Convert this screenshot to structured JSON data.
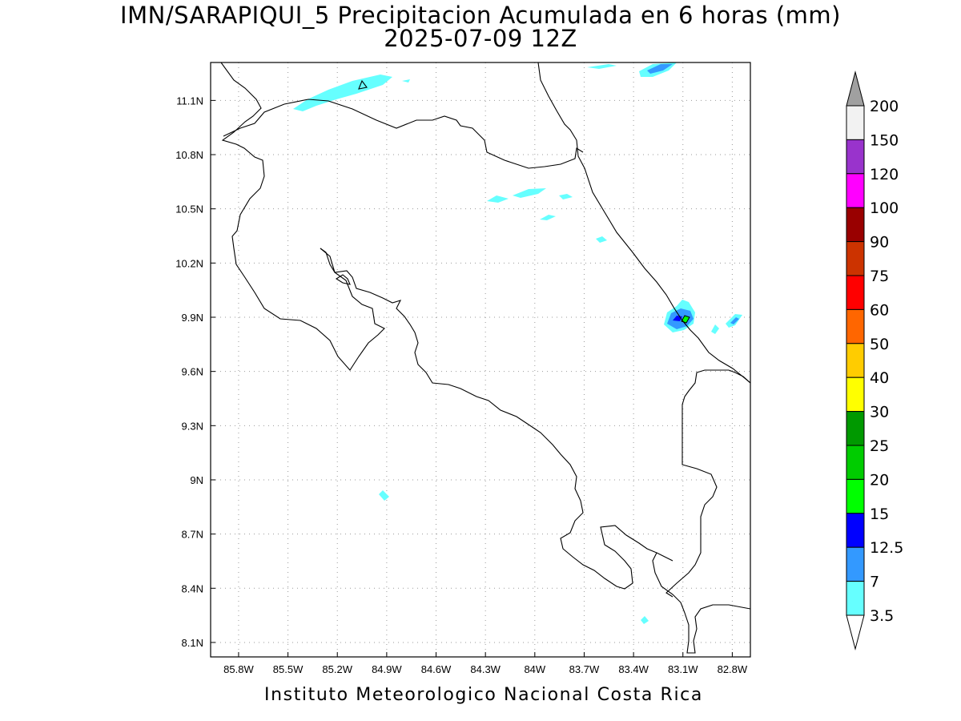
{
  "title": {
    "line1": "IMN/SARAPIQUI_5 Precipitacion Acumulada en 6 horas (mm)",
    "line2": "2025-07-09 12Z"
  },
  "footer": "Instituto Meteorologico Nacional Costa Rica",
  "map": {
    "lon_range": [
      -85.97,
      -82.69
    ],
    "lat_range": [
      8.02,
      11.31
    ],
    "lon_ticks": [
      {
        "v": -85.8,
        "label": "85.8W"
      },
      {
        "v": -85.5,
        "label": "85.5W"
      },
      {
        "v": -85.2,
        "label": "85.2W"
      },
      {
        "v": -84.9,
        "label": "84.9W"
      },
      {
        "v": -84.6,
        "label": "84.6W"
      },
      {
        "v": -84.3,
        "label": "84.3W"
      },
      {
        "v": -84.0,
        "label": "84W"
      },
      {
        "v": -83.7,
        "label": "83.7W"
      },
      {
        "v": -83.4,
        "label": "83.4W"
      },
      {
        "v": -83.1,
        "label": "83.1W"
      },
      {
        "v": -82.8,
        "label": "82.8W"
      }
    ],
    "lat_ticks": [
      {
        "v": 11.1,
        "label": "11.1N"
      },
      {
        "v": 10.8,
        "label": "10.8N"
      },
      {
        "v": 10.5,
        "label": "10.5N"
      },
      {
        "v": 10.2,
        "label": "10.2N"
      },
      {
        "v": 9.9,
        "label": "9.9N"
      },
      {
        "v": 9.6,
        "label": "9.6N"
      },
      {
        "v": 9.3,
        "label": "9.3N"
      },
      {
        "v": 9.0,
        "label": "9N"
      },
      {
        "v": 8.7,
        "label": "8.7N"
      },
      {
        "v": 8.4,
        "label": "8.4N"
      },
      {
        "v": 8.1,
        "label": "8.1N"
      }
    ],
    "grid": true,
    "colorbar": {
      "top_arrow_color": "#a0a0a0",
      "bottom_arrow_color": "#ffffff",
      "bins": [
        {
          "color": "#f2f2f2",
          "label": "200"
        },
        {
          "color": "#9933cc",
          "label": "150"
        },
        {
          "color": "#ff00ff",
          "label": "120"
        },
        {
          "color": "#990000",
          "label": "100"
        },
        {
          "color": "#cc3300",
          "label": "90"
        },
        {
          "color": "#ff0000",
          "label": "75"
        },
        {
          "color": "#ff6600",
          "label": "60"
        },
        {
          "color": "#ffcc00",
          "label": "50"
        },
        {
          "color": "#ffff00",
          "label": "40"
        },
        {
          "color": "#009900",
          "label": "30"
        },
        {
          "color": "#00cc00",
          "label": "25"
        },
        {
          "color": "#00ff00",
          "label": "20"
        },
        {
          "color": "#0000ff",
          "label": "15"
        },
        {
          "color": "#3399ff",
          "label": "12.5"
        },
        {
          "color": "#66ffff",
          "label": "7"
        }
      ],
      "bottom_label": "3.5"
    }
  }
}
